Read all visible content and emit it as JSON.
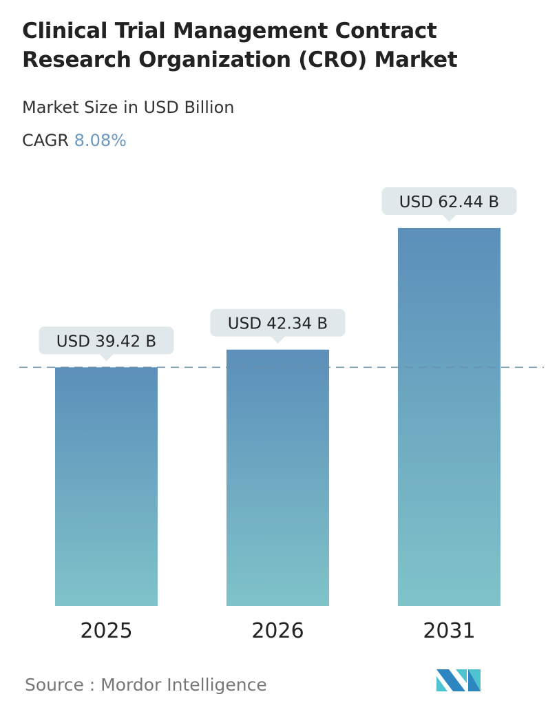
{
  "title": "Clinical Trial Management Contract Research Organization (CRO) Market",
  "subtitle": "Market Size in USD Billion",
  "cagr_label": "CAGR",
  "cagr_value": "8.08%",
  "source": "Source :  Mordor Intelligence",
  "logo_text": "Mordor Intelligence",
  "colors": {
    "bar_top": "#5b8fba",
    "bar_bottom": "#80c3c9",
    "label_bg": "#e0e8eb",
    "cagr": "#6a98c0"
  },
  "chart_data": {
    "type": "bar",
    "categories": [
      "2025",
      "2026",
      "2031"
    ],
    "values": [
      39.42,
      42.34,
      62.44
    ],
    "data_labels": [
      "USD 39.42 B",
      "USD 42.34 B",
      "USD 62.44 B"
    ],
    "reference_line": 39.42,
    "ylim": [
      0,
      62.44
    ],
    "grid": false
  }
}
